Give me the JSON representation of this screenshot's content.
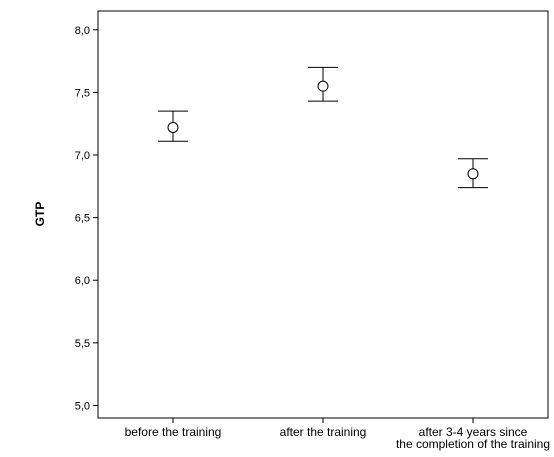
{
  "chart_data": {
    "type": "scatter",
    "ylabel": "GTP",
    "ylim": [
      4.9,
      8.15
    ],
    "yticks": [
      "5,0",
      "5,5",
      "6,0",
      "6,5",
      "7,0",
      "7,5",
      "8,0"
    ],
    "ytick_values": [
      5.0,
      5.5,
      6.0,
      6.5,
      7.0,
      7.5,
      8.0
    ],
    "categories": [
      [
        "before the training"
      ],
      [
        "after the training"
      ],
      [
        "after 3-4 years since",
        "the completion of the training"
      ]
    ],
    "means": [
      7.22,
      7.55,
      6.85
    ],
    "lower": [
      7.11,
      7.43,
      6.74
    ],
    "upper": [
      7.35,
      7.7,
      6.97
    ],
    "grid": false
  }
}
